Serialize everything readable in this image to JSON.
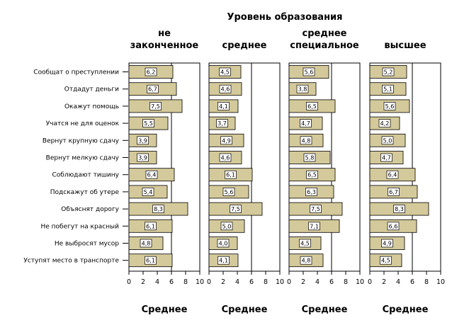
{
  "chart_data": {
    "type": "bar",
    "orientation": "horizontal",
    "title": "Уровень образования",
    "xlabel": "Среднее",
    "xlim": [
      0,
      10
    ],
    "xticks": [
      "0",
      "2",
      "4",
      "6",
      "8",
      "10"
    ],
    "reference_line": 6,
    "categories": [
      "Сообщат о преступлении",
      "Отдадут деньги",
      "Окажут помощь",
      "Учатся не для оценок",
      "Вернут крупную сдачу",
      "Вернут мелкую сдачу",
      "Соблюдают тишину",
      "Подскажут об утере",
      "Объяснят дорогу",
      "Не побегут на красный",
      "Не выбросят мусор",
      "Уступят место в транспорте"
    ],
    "panels": [
      {
        "name": "не законченное",
        "header_lines": [
          "не",
          "законченное"
        ],
        "values": [
          6.2,
          6.7,
          7.5,
          5.5,
          3.9,
          3.9,
          6.4,
          5.4,
          8.3,
          6.1,
          4.8,
          6.1
        ],
        "labels": [
          "6,2",
          "6,7",
          "7,5",
          "5,5",
          "3,9",
          "3,9",
          "6,4",
          "5,4",
          "8,3",
          "6,1",
          "4,8",
          "6,1"
        ]
      },
      {
        "name": "среднее",
        "header_lines": [
          "",
          "среднее"
        ],
        "values": [
          4.5,
          4.6,
          4.1,
          3.7,
          4.9,
          4.6,
          6.1,
          5.6,
          7.5,
          5.0,
          4.0,
          4.1
        ],
        "labels": [
          "4,5",
          "4,6",
          "4,1",
          "3,7",
          "4,9",
          "4,6",
          "6,1",
          "5,6",
          "7,5",
          "5,0",
          "4,0",
          "4,1"
        ]
      },
      {
        "name": "среднее специальное",
        "header_lines": [
          "среднее",
          "специальное"
        ],
        "values": [
          5.6,
          3.8,
          6.5,
          4.7,
          4.8,
          5.8,
          6.5,
          6.3,
          7.5,
          7.1,
          4.5,
          4.8
        ],
        "labels": [
          "5,6",
          "3,8",
          "6,5",
          "4,7",
          "4,8",
          "5,8",
          "6,5",
          "6,3",
          "7,5",
          "7,1",
          "4,5",
          "4,8"
        ]
      },
      {
        "name": "высшее",
        "header_lines": [
          "",
          "высшее"
        ],
        "values": [
          5.2,
          5.1,
          5.6,
          4.2,
          5.0,
          4.7,
          6.4,
          6.7,
          8.3,
          6.6,
          4.9,
          4.5
        ],
        "labels": [
          "5,2",
          "5,1",
          "5,6",
          "4,2",
          "5,0",
          "4,7",
          "6,4",
          "6,7",
          "8,3",
          "6,6",
          "4,9",
          "4,5"
        ]
      }
    ],
    "grid": false,
    "legend": "none",
    "colors": {
      "bar_fill": "#d4c99a",
      "panel_bg": "#ffffff",
      "stroke": "#000000"
    }
  }
}
